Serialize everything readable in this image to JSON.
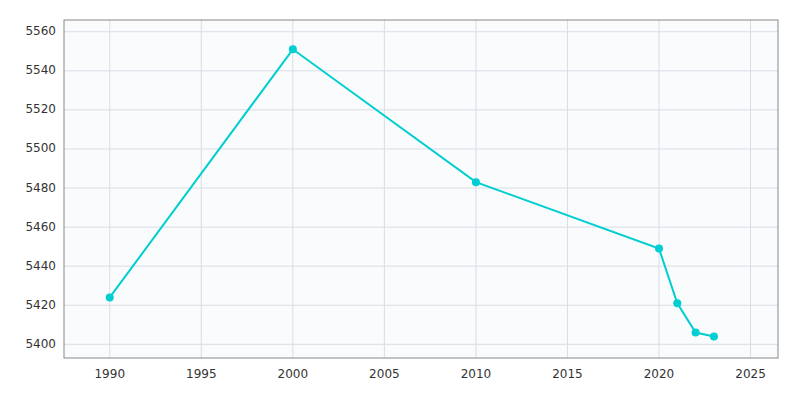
{
  "chart_data": {
    "type": "line",
    "x": [
      1990,
      2000,
      2010,
      2020,
      2021,
      2022,
      2023
    ],
    "values": [
      5424,
      5551,
      5483,
      5449,
      5421,
      5406,
      5404
    ],
    "color": "#00CED1",
    "marker": "circle",
    "xlim": [
      1987.5,
      2026.5
    ],
    "ylim": [
      5393,
      5566
    ],
    "xticks": [
      1990,
      1995,
      2000,
      2005,
      2010,
      2015,
      2020,
      2025
    ],
    "yticks": [
      5400,
      5420,
      5440,
      5460,
      5480,
      5500,
      5520,
      5540,
      5560
    ],
    "grid": true
  }
}
